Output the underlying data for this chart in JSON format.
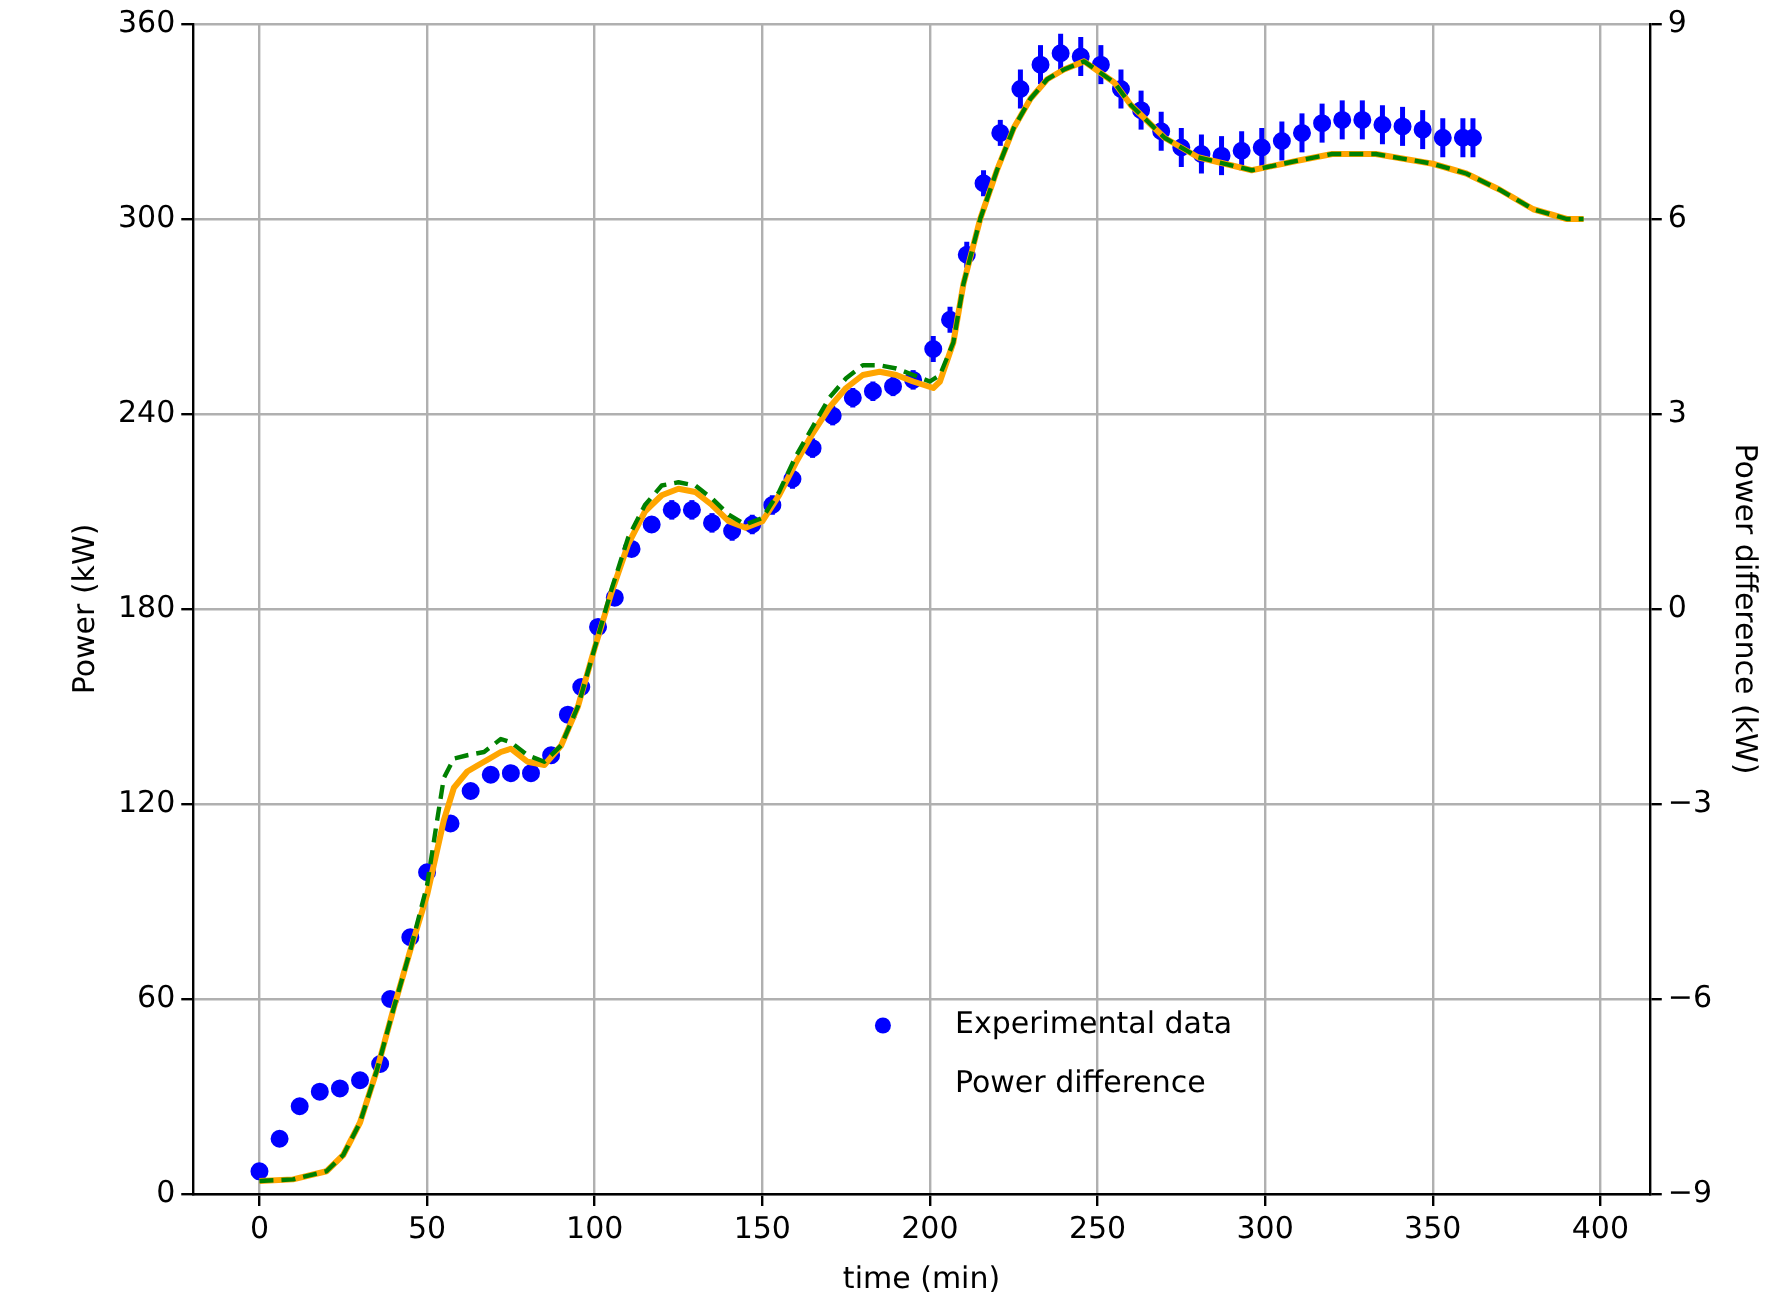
{
  "chart_data": {
    "type": "line",
    "xlabel": "time (min)",
    "ylabel": "Power (kW)",
    "y2label": "Power difference (kW)",
    "xlim": [
      -19.75,
      414.75
    ],
    "xticks": [
      0,
      50,
      100,
      150,
      200,
      250,
      300,
      350,
      400
    ],
    "ylim": [
      0,
      360
    ],
    "yticks": [
      0,
      60,
      120,
      180,
      240,
      300,
      360
    ],
    "y2lim": [
      -9,
      9
    ],
    "y2ticks": [
      {
        "value": -9,
        "label": "−9"
      },
      {
        "value": -6,
        "label": "−6"
      },
      {
        "value": -3,
        "label": "−3"
      },
      0,
      3,
      6,
      9
    ],
    "grid": true,
    "legend": "bottom",
    "series": [
      {
        "name": "Experimental data",
        "type": "scatter",
        "marker": "circle",
        "color": "#0000ff",
        "x": [
          0,
          6,
          12,
          18,
          24,
          30,
          36,
          39,
          45,
          50,
          57,
          63,
          69,
          75,
          81,
          87,
          92,
          96,
          101,
          106,
          111,
          117,
          123,
          129,
          135,
          141,
          147,
          153,
          159,
          165,
          171,
          177,
          183,
          189,
          195,
          201,
          206,
          211,
          216,
          221,
          227,
          233,
          239,
          245,
          251,
          257,
          263,
          269,
          275,
          281,
          287,
          293,
          299,
          305,
          311,
          317,
          323,
          329,
          335,
          341,
          347,
          353,
          359,
          362
        ],
        "values": [
          7,
          17,
          27,
          31.5,
          32.5,
          35,
          40,
          60,
          79,
          99,
          114,
          124,
          129,
          129.5,
          129.5,
          135,
          147.5,
          156,
          174.5,
          183.5,
          198.5,
          206,
          210.5,
          210.5,
          206.5,
          204,
          206,
          212,
          220,
          229.5,
          239.5,
          245,
          247,
          248.5,
          250.5,
          260,
          269,
          289,
          311,
          326.5,
          340,
          347.5,
          351,
          350,
          347.5,
          340,
          333.5,
          327,
          322,
          320,
          319.5,
          321,
          322,
          324,
          326.5,
          329.5,
          330.5,
          330.5,
          329,
          328.5,
          327.5,
          325,
          325,
          325
        ],
        "errors": [
          2,
          2,
          2,
          2,
          2,
          2,
          2,
          2,
          2,
          2,
          2,
          2,
          2,
          2,
          2,
          2,
          2,
          2,
          2,
          2,
          2,
          2,
          3,
          3,
          3,
          3,
          3,
          3,
          3,
          3,
          3,
          3,
          3,
          3,
          3,
          4,
          4,
          4,
          4,
          4,
          6,
          6,
          6,
          6,
          6,
          6,
          6,
          6,
          6,
          6,
          6,
          6,
          6,
          6,
          6,
          6,
          6,
          6,
          6,
          6,
          6,
          6,
          6,
          6
        ]
      },
      {
        "line_style": "solid",
        "color": "#ffa500",
        "x": [
          0,
          10,
          20,
          25,
          30,
          35,
          40,
          45,
          50,
          55,
          58,
          62,
          67,
          72,
          75,
          80,
          85,
          90,
          95,
          100,
          105,
          110,
          115,
          120,
          125,
          130,
          135,
          140,
          145,
          150,
          155,
          160,
          165,
          170,
          175,
          180,
          185,
          190,
          195,
          201,
          203,
          207,
          210,
          215,
          220,
          225,
          230,
          235,
          240,
          246,
          255,
          260,
          265,
          270,
          280,
          296,
          310,
          320,
          333,
          350,
          360,
          370,
          380,
          390,
          395
        ],
        "values": [
          4,
          4.5,
          7,
          12,
          22,
          38,
          57,
          75,
          92,
          115,
          125,
          130,
          133,
          136,
          137,
          133,
          132,
          138,
          150,
          168,
          185,
          200,
          210,
          215,
          217,
          216,
          212,
          207,
          205,
          207,
          215,
          225,
          234,
          242,
          248,
          252,
          253,
          252,
          250,
          248,
          250,
          262,
          280,
          300,
          315,
          328,
          337,
          343,
          346,
          348.5,
          342,
          335,
          330,
          325,
          319,
          315,
          318,
          320,
          320,
          317,
          314,
          309,
          303,
          300,
          300
        ]
      },
      {
        "line_style": "dashed",
        "color": "#008000",
        "x": [
          0,
          10,
          20,
          25,
          30,
          35,
          40,
          45,
          50,
          53,
          55,
          58,
          62,
          67,
          72,
          75,
          80,
          85,
          90,
          95,
          100,
          105,
          110,
          115,
          120,
          125,
          130,
          135,
          140,
          145,
          150,
          155,
          160,
          165,
          170,
          175,
          180,
          185,
          190,
          195,
          200,
          203,
          207,
          210,
          215,
          220,
          225,
          230,
          235,
          240,
          246,
          255,
          260,
          265,
          270,
          280,
          296,
          310,
          320,
          333,
          350,
          360,
          370,
          380,
          390,
          395
        ],
        "values": [
          4,
          4.5,
          7,
          12,
          22,
          38,
          57,
          75,
          95,
          115,
          128,
          134,
          135,
          136,
          140,
          139,
          135,
          133,
          138,
          150,
          168,
          186,
          202,
          212,
          218,
          219,
          218,
          214,
          209,
          206,
          208,
          216,
          227,
          236,
          245,
          251,
          255,
          255,
          254,
          252,
          250,
          252,
          262,
          280,
          300,
          315,
          328,
          337,
          343,
          346,
          348.5,
          342,
          335,
          330,
          325,
          319,
          315,
          318,
          320,
          320,
          317,
          314,
          309,
          303,
          300,
          300
        ]
      },
      {
        "name": "Power difference"
      }
    ]
  }
}
